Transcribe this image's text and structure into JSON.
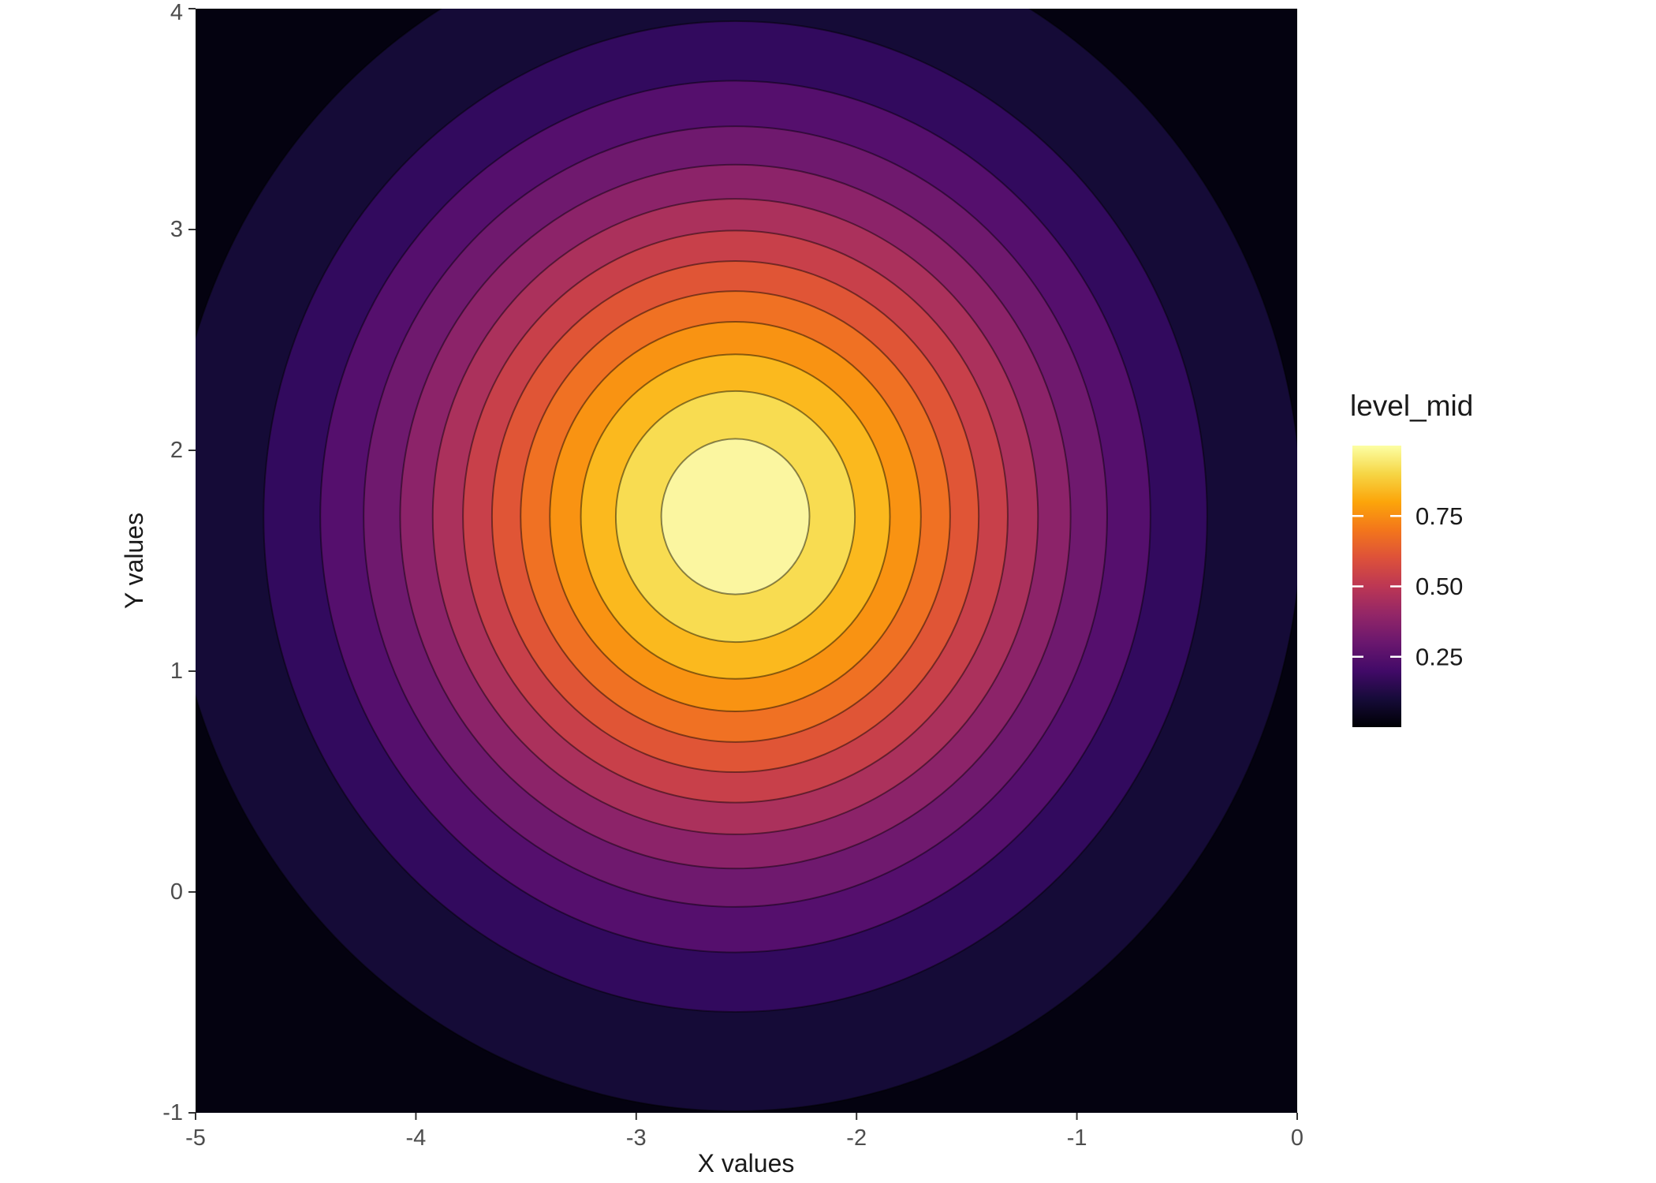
{
  "chart_data": {
    "type": "heatmap",
    "subtype": "filled_contour",
    "title": "",
    "xlabel": "X values",
    "ylabel": "Y values",
    "xlim": [
      -5,
      0
    ],
    "ylim": [
      -1,
      4
    ],
    "x_tick_values": [
      -5,
      -4,
      -3,
      -2,
      -1,
      0
    ],
    "x_tick_labels": [
      "-5",
      "-4",
      "-3",
      "-2",
      "-1",
      "0"
    ],
    "y_tick_values": [
      -1,
      0,
      1,
      2,
      3,
      4
    ],
    "y_tick_labels": [
      "-1",
      "0",
      "1",
      "2",
      "3",
      "4"
    ],
    "surface": "bivariate gaussian: level = exp(-0.5*(((x-cx)/sx)^2 + ((y-cy)/sy)^2))",
    "center": {
      "x": -2.55,
      "y": 1.7
    },
    "sigma": {
      "x": 1.05,
      "y": 1.1
    },
    "peak_level": 1.0,
    "contour_breaks": [
      0.05,
      0.125,
      0.2,
      0.275,
      0.35,
      0.425,
      0.5,
      0.575,
      0.65,
      0.725,
      0.8,
      0.875,
      0.95
    ],
    "band_level_mids": [
      0.025,
      0.0875,
      0.1625,
      0.2375,
      0.3125,
      0.3875,
      0.4625,
      0.5375,
      0.6125,
      0.6875,
      0.7625,
      0.8375,
      0.9125,
      0.975
    ],
    "band_colors": [
      "#040210",
      "#150b37",
      "#320a5e",
      "#550f6d",
      "#6f196e",
      "#8c2369",
      "#ab315c",
      "#c8404a",
      "#e05536",
      "#f07123",
      "#f99312",
      "#fbb91e",
      "#f8dc51",
      "#fbf6a0"
    ],
    "colormap": "inferno",
    "grid": false,
    "legend": {
      "title": "level_mid",
      "position": "right",
      "range": [
        0,
        1
      ],
      "tick_values": [
        0.75,
        0.5,
        0.25
      ],
      "tick_labels": [
        "0.75",
        "0.50",
        "0.25"
      ],
      "gradient_stops": [
        [
          0.0,
          "#000004"
        ],
        [
          0.1,
          "#160b39"
        ],
        [
          0.2,
          "#420a68"
        ],
        [
          0.3,
          "#6a176e"
        ],
        [
          0.4,
          "#932667"
        ],
        [
          0.5,
          "#bc3754"
        ],
        [
          0.6,
          "#dd513a"
        ],
        [
          0.7,
          "#f3761b"
        ],
        [
          0.8,
          "#fca50a"
        ],
        [
          0.9,
          "#f6d645"
        ],
        [
          1.0,
          "#fcffa4"
        ]
      ]
    }
  },
  "styles": {
    "background": "#ffffff",
    "tick_label_color": "#4d4d4d",
    "axis_title_color": "#1a1a1a",
    "contour_line_color": "rgba(0,0,0,0.45)",
    "tick_mark_color": "#333333",
    "legend_tick_color": "#ffffff"
  }
}
